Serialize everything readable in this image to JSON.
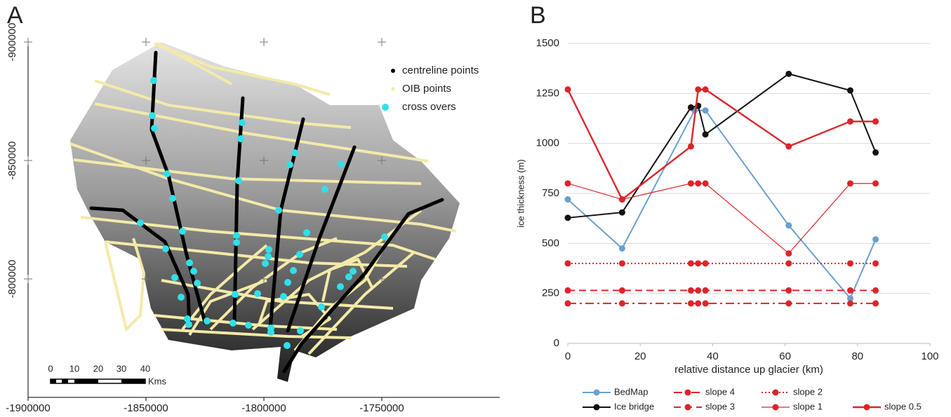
{
  "chart_data": [
    {
      "type": "map",
      "panel": "A",
      "xlim": [
        -1900000,
        -1700000
      ],
      "ylim": [
        -750000,
        -900000
      ],
      "xticks": [
        -1900000,
        -1850000,
        -1800000,
        -1750000
      ],
      "yticks": [
        -900000,
        -850000,
        -800000
      ],
      "legend": [
        {
          "name": "centreline points",
          "color": "#000000"
        },
        {
          "name": "OIB points",
          "color": "#f3eaa8"
        },
        {
          "name": "cross overs",
          "color": "#2fe0ea"
        }
      ],
      "scale_bar": {
        "ticks": [
          0,
          10,
          20,
          30,
          40
        ],
        "unit": "Kms"
      }
    },
    {
      "type": "line",
      "panel": "B",
      "xlabel": "relative distance up glacier (km)",
      "ylabel": "ice thickness (m)",
      "xlim": [
        0,
        100
      ],
      "ylim": [
        0,
        1500
      ],
      "xticks": [
        0,
        20,
        40,
        60,
        80,
        100
      ],
      "yticks": [
        0,
        250,
        500,
        750,
        1000,
        1250,
        1500
      ],
      "grid": true,
      "series": [
        {
          "name": "BedMap",
          "color": "#6a9fcf",
          "dash": "solid",
          "width": 2,
          "x": [
            0,
            15,
            35,
            38,
            61,
            78,
            85
          ],
          "values": [
            720,
            475,
            1165,
            1165,
            590,
            225,
            520
          ]
        },
        {
          "name": "Ice bridge",
          "color": "#111111",
          "dash": "solid",
          "width": 2,
          "x": [
            0,
            15,
            34,
            36,
            38,
            61,
            78,
            85
          ],
          "values": [
            628,
            655,
            1180,
            1188,
            1045,
            1348,
            1265,
            955
          ]
        },
        {
          "name": "slope 4",
          "color": "#d9262b",
          "dash": "dashdot",
          "width": 2,
          "x": [
            0,
            15,
            34,
            36,
            38,
            61,
            78,
            85
          ],
          "values": [
            200,
            200,
            200,
            200,
            200,
            200,
            200,
            200
          ]
        },
        {
          "name": "slope 3",
          "color": "#d9262b",
          "dash": "dashed",
          "width": 2,
          "x": [
            0,
            15,
            34,
            36,
            38,
            61,
            78,
            85
          ],
          "values": [
            265,
            265,
            265,
            265,
            265,
            265,
            265,
            265
          ]
        },
        {
          "name": "slope 2",
          "color": "#d9262b",
          "dash": "dotted",
          "width": 2,
          "x": [
            0,
            15,
            34,
            36,
            38,
            61,
            78,
            85
          ],
          "values": [
            400,
            400,
            400,
            400,
            400,
            400,
            400,
            400
          ]
        },
        {
          "name": "slope 1",
          "color": "#d9262b",
          "dash": "solid",
          "width": 1.2,
          "x": [
            0,
            15,
            34,
            36,
            38,
            61,
            78,
            85
          ],
          "values": [
            800,
            720,
            800,
            800,
            800,
            450,
            800,
            800
          ]
        },
        {
          "name": "slope 0.5",
          "color": "#d9262b",
          "dash": "solid",
          "width": 2.4,
          "x": [
            0,
            15,
            34,
            36,
            38,
            61,
            78,
            85
          ],
          "values": [
            1270,
            720,
            985,
            1270,
            1270,
            985,
            1110,
            1110
          ]
        }
      ]
    }
  ]
}
